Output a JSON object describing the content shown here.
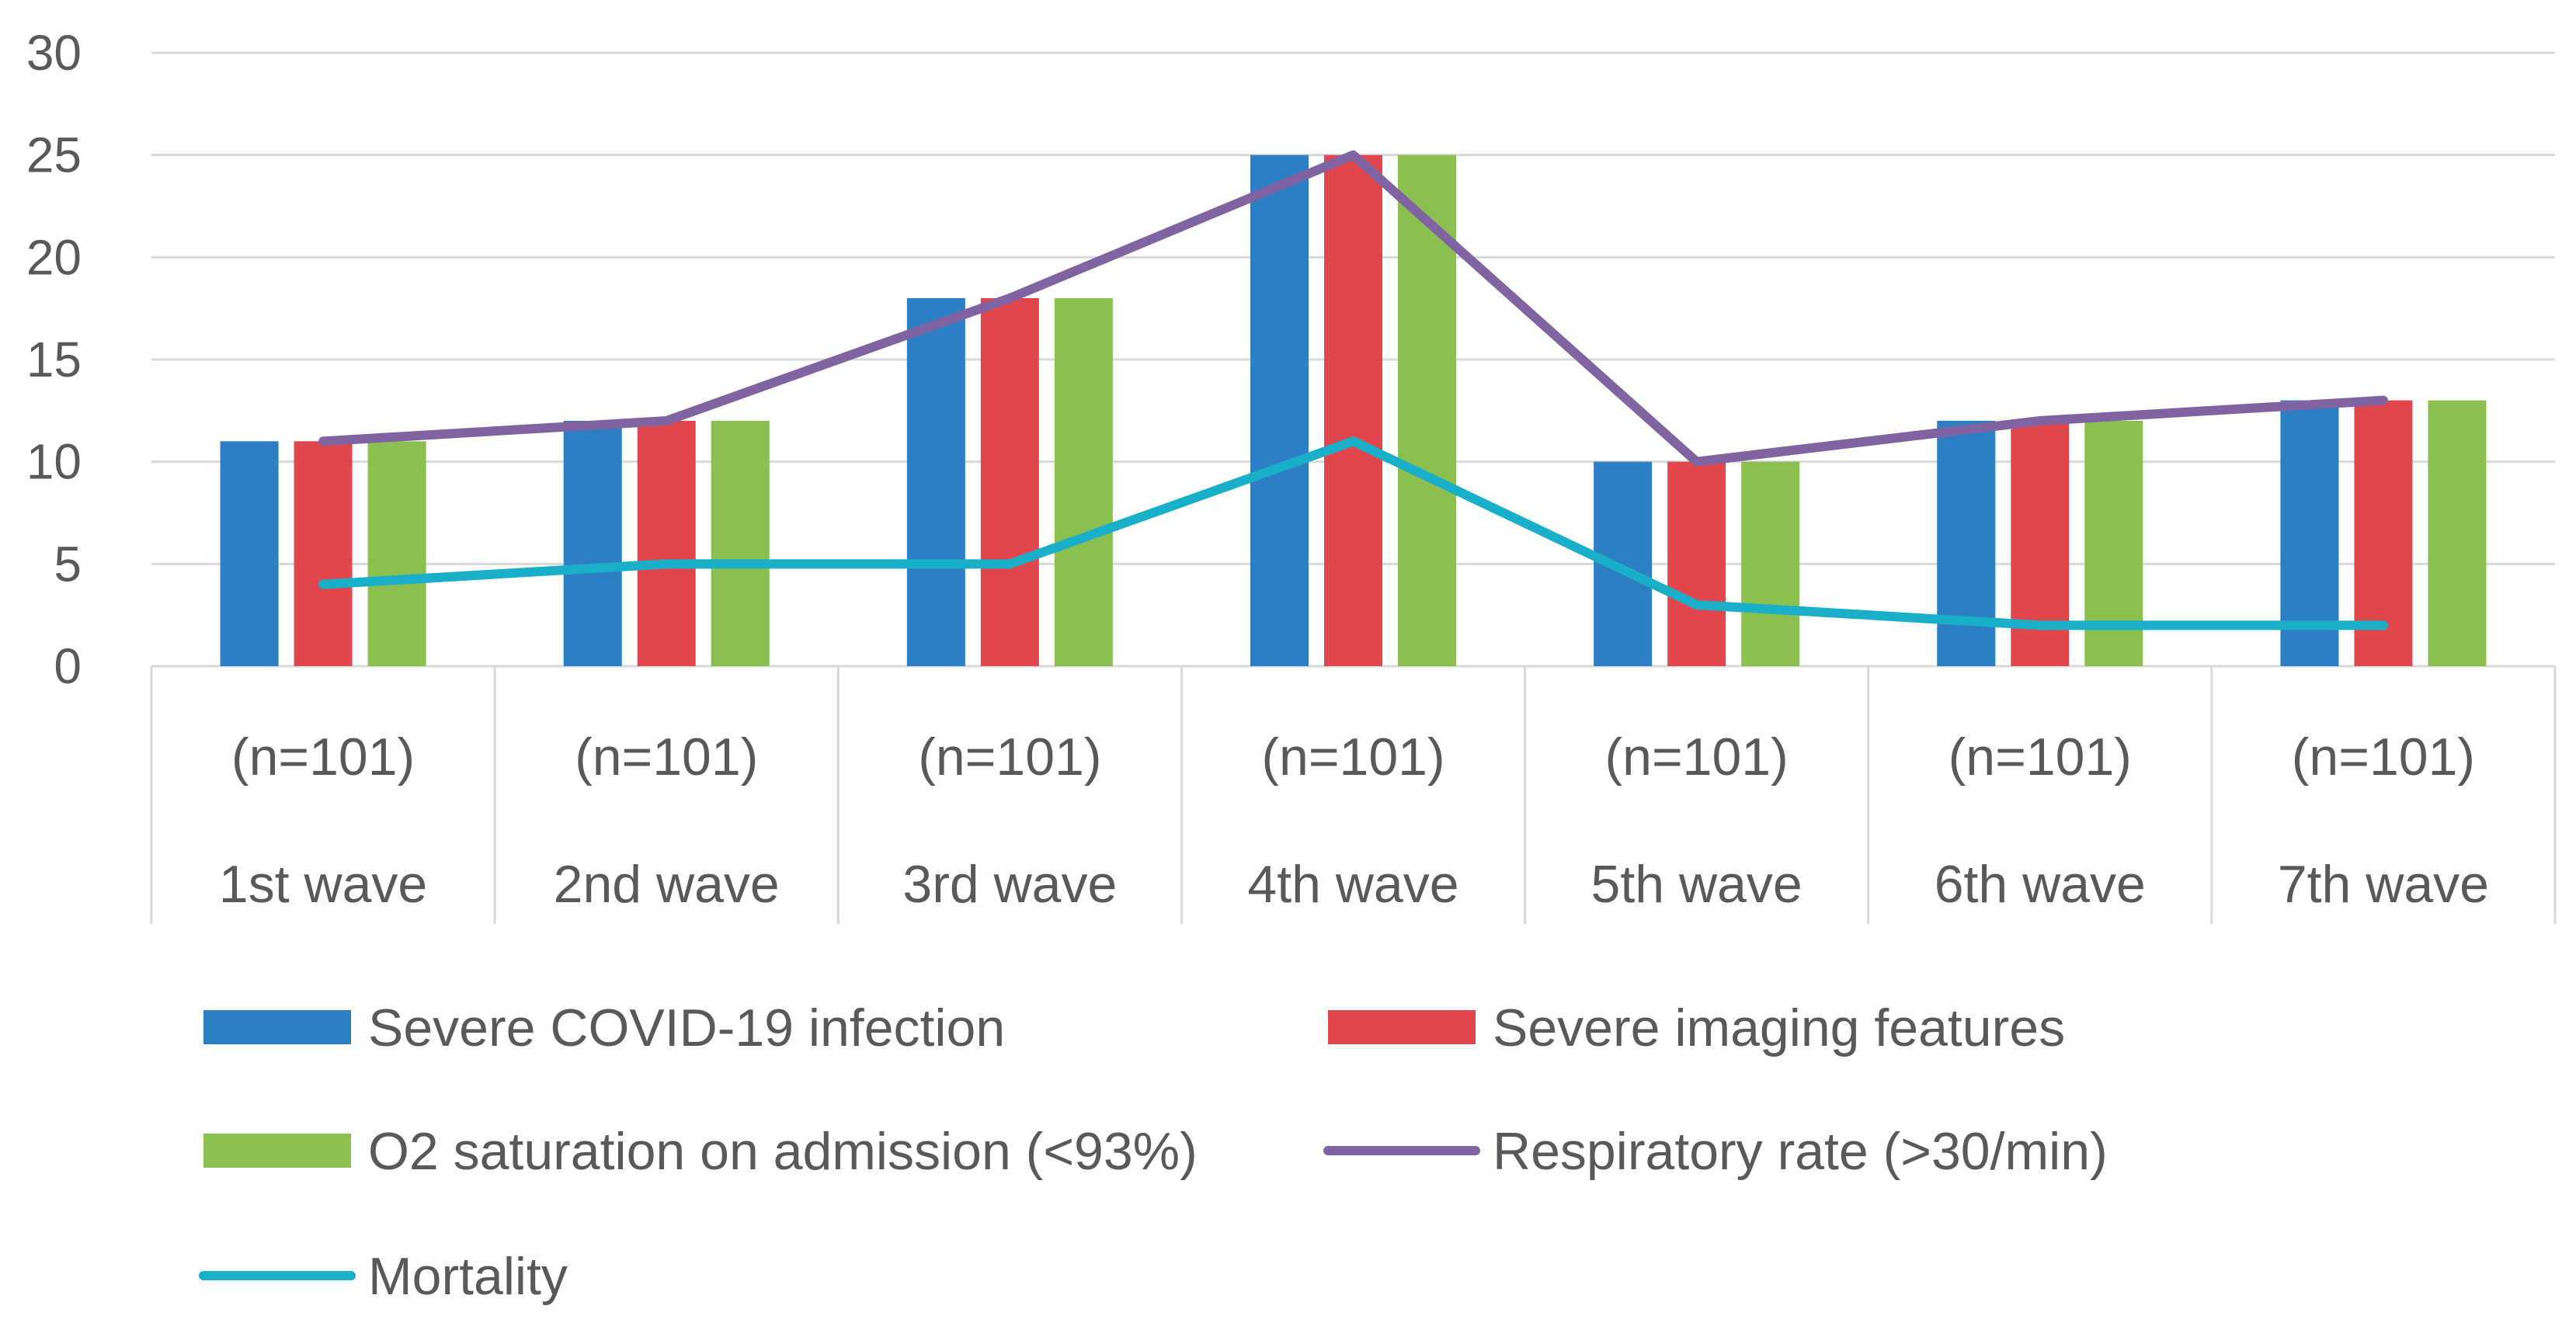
{
  "chart_data": {
    "type": "bar",
    "title": "",
    "xlabel": "",
    "ylabel": "",
    "ylim": [
      0,
      30
    ],
    "yticks": [
      0,
      5,
      10,
      15,
      20,
      25,
      30
    ],
    "grid": true,
    "legend_position": "bottom",
    "categories": [
      {
        "top": "(n=101)",
        "bottom": "1st wave"
      },
      {
        "top": "(n=101)",
        "bottom": "2nd wave"
      },
      {
        "top": "(n=101)",
        "bottom": "3rd wave"
      },
      {
        "top": "(n=101)",
        "bottom": "4th wave"
      },
      {
        "top": "(n=101)",
        "bottom": "5th wave"
      },
      {
        "top": "(n=101)",
        "bottom": "6th wave"
      },
      {
        "top": "(n=101)",
        "bottom": "7th wave"
      }
    ],
    "bar_series": [
      {
        "name": "Severe COVID-19 infection",
        "color": "#2E7EC3",
        "values": [
          11,
          12,
          18,
          25,
          10,
          12,
          13
        ]
      },
      {
        "name": "Severe imaging features",
        "color": "#E0474C",
        "values": [
          11,
          12,
          18,
          25,
          10,
          12,
          13
        ]
      },
      {
        "name": "O2 saturation on admission (<93%)",
        "color": "#8CBF52",
        "values": [
          11,
          12,
          18,
          25,
          10,
          12,
          13
        ]
      }
    ],
    "line_series": [
      {
        "name": "Respiratory rate (>30/min)",
        "color": "#8064A2",
        "values": [
          11,
          12,
          18,
          25,
          10,
          12,
          13
        ]
      },
      {
        "name": "Mortality",
        "color": "#19AFC8",
        "values": [
          4,
          5,
          5,
          11,
          3,
          2,
          2
        ]
      }
    ],
    "legend_order": [
      "Severe COVID-19 infection",
      "Severe imaging features",
      "O2 saturation on admission (<93%)",
      "Respiratory rate (>30/min)",
      "Mortality"
    ]
  }
}
